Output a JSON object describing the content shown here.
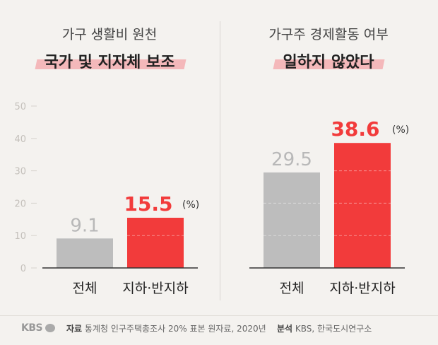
{
  "panels": [
    {
      "title": "가구 생활비 원천",
      "subtitle": "국가 및 지자체 보조"
    },
    {
      "title": "가구주 경제활동 여부",
      "subtitle": "일하지 않았다"
    }
  ],
  "chart_data": [
    {
      "type": "bar",
      "categories": [
        "전체",
        "지하·반지하"
      ],
      "values": [
        9.1,
        15.5
      ],
      "colors": [
        "#bdbdbd",
        "#f23b3b"
      ],
      "unit": "(%)",
      "ylim": [
        0,
        50
      ],
      "yticks": [
        0,
        10,
        20,
        30,
        40,
        50
      ],
      "show_yaxis": true
    },
    {
      "type": "bar",
      "categories": [
        "전체",
        "지하·반지하"
      ],
      "values": [
        29.5,
        38.6
      ],
      "colors": [
        "#bdbdbd",
        "#f23b3b"
      ],
      "unit": "(%)",
      "ylim": [
        0,
        50
      ],
      "yticks": [
        0,
        10,
        20,
        30,
        40,
        50
      ],
      "show_yaxis": false
    }
  ],
  "footer": {
    "logo": "KBS",
    "source_label": "자료",
    "source_text": "통계청 인구주택총조사 20% 표본 원자료, 2020년",
    "analysis_label": "분석",
    "analysis_text": "KBS, 한국도시연구소"
  }
}
